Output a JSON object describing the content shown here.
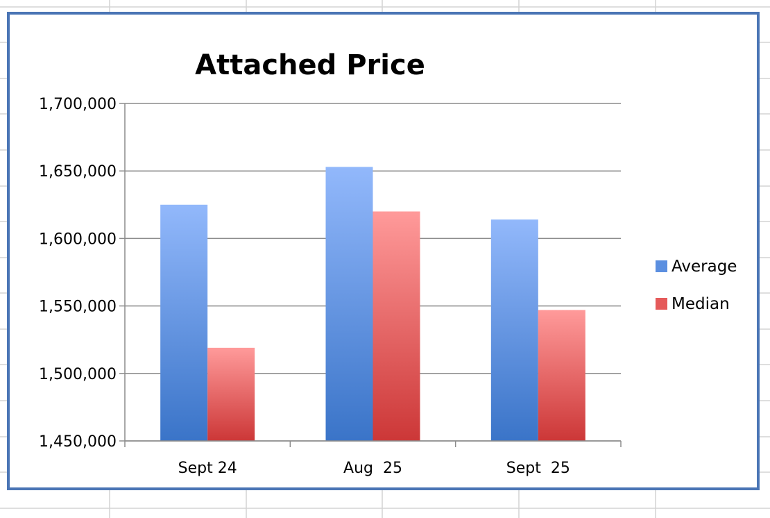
{
  "colors": {
    "frame": "#4a75b5",
    "gridline": "#8c8c8c",
    "sheet_grid": "#d4d4d4",
    "series": [
      {
        "top": "#92b8fb",
        "bottom": "#3a74c8",
        "legend": "#5b8fe0"
      },
      {
        "top": "#ff9a9a",
        "bottom": "#cc3737",
        "legend": "#e55a5a"
      }
    ]
  },
  "chart_data": {
    "type": "bar",
    "title": "Attached Price",
    "xlabel": "",
    "ylabel": "",
    "categories": [
      "Sept 24",
      "Aug  25",
      "Sept  25"
    ],
    "series": [
      {
        "name": "Average",
        "values": [
          1625000,
          1653000,
          1614000
        ]
      },
      {
        "name": "Median",
        "values": [
          1519000,
          1620000,
          1547000
        ]
      }
    ],
    "ylim": [
      1450000,
      1700000
    ],
    "yticks": [
      1450000,
      1500000,
      1550000,
      1600000,
      1650000,
      1700000
    ],
    "ytick_labels": [
      "1,450,000",
      "1,500,000",
      "1,550,000",
      "1,600,000",
      "1,650,000",
      "1,700,000"
    ],
    "grid": true,
    "legend_position": "right"
  }
}
